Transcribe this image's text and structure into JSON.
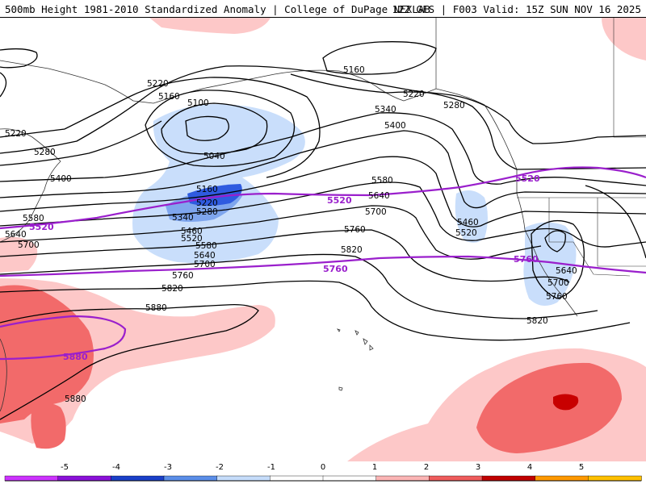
{
  "header": {
    "left": "500mb Height 1981-2010 Standardized Anomaly | College of DuPage NEXLAB",
    "right": "12Z GFS | F003 Valid: 15Z SUN NOV 16 2025"
  },
  "colors": {
    "neg_strong": "#2f5be0",
    "neg_medium": "#7fa6ee",
    "neg_light": "#c9defb",
    "pos_light": "#fdc8c8",
    "pos_medium": "#f26a6a",
    "pos_strong": "#c80000",
    "contour": "#000000",
    "purple_contour": "#9a1fcc",
    "coast": "#333333"
  },
  "height_labels": [
    "5160",
    "5220",
    "5160",
    "5100",
    "5040",
    "5220",
    "5280",
    "5400",
    "5340",
    "5400",
    "5220",
    "5280",
    "5160",
    "5220",
    "5280",
    "5340",
    "5580",
    "5640",
    "5700",
    "5460",
    "5520",
    "5580",
    "5640",
    "5700",
    "5760",
    "5820",
    "5880",
    "5580",
    "5640",
    "5700",
    "5820",
    "5760",
    "5460",
    "5520",
    "5640",
    "5700",
    "5760",
    "5820",
    "5880"
  ],
  "purple_labels": [
    "5520",
    "5520",
    "5520",
    "5760",
    "5760",
    "5880"
  ],
  "colorbar": {
    "labels": [
      "-5",
      "-4",
      "-3",
      "-2",
      "-1",
      "0",
      "1",
      "2",
      "3",
      "4",
      "5"
    ],
    "segments": [
      "#cc33ff",
      "#8a10d8",
      "#1a3fc8",
      "#5b8ee8",
      "#c5dcfa",
      "#ffffff",
      "#ffffff",
      "#fbb4b4",
      "#ef5c5c",
      "#c00000",
      "#ff9900",
      "#ffc000"
    ]
  }
}
